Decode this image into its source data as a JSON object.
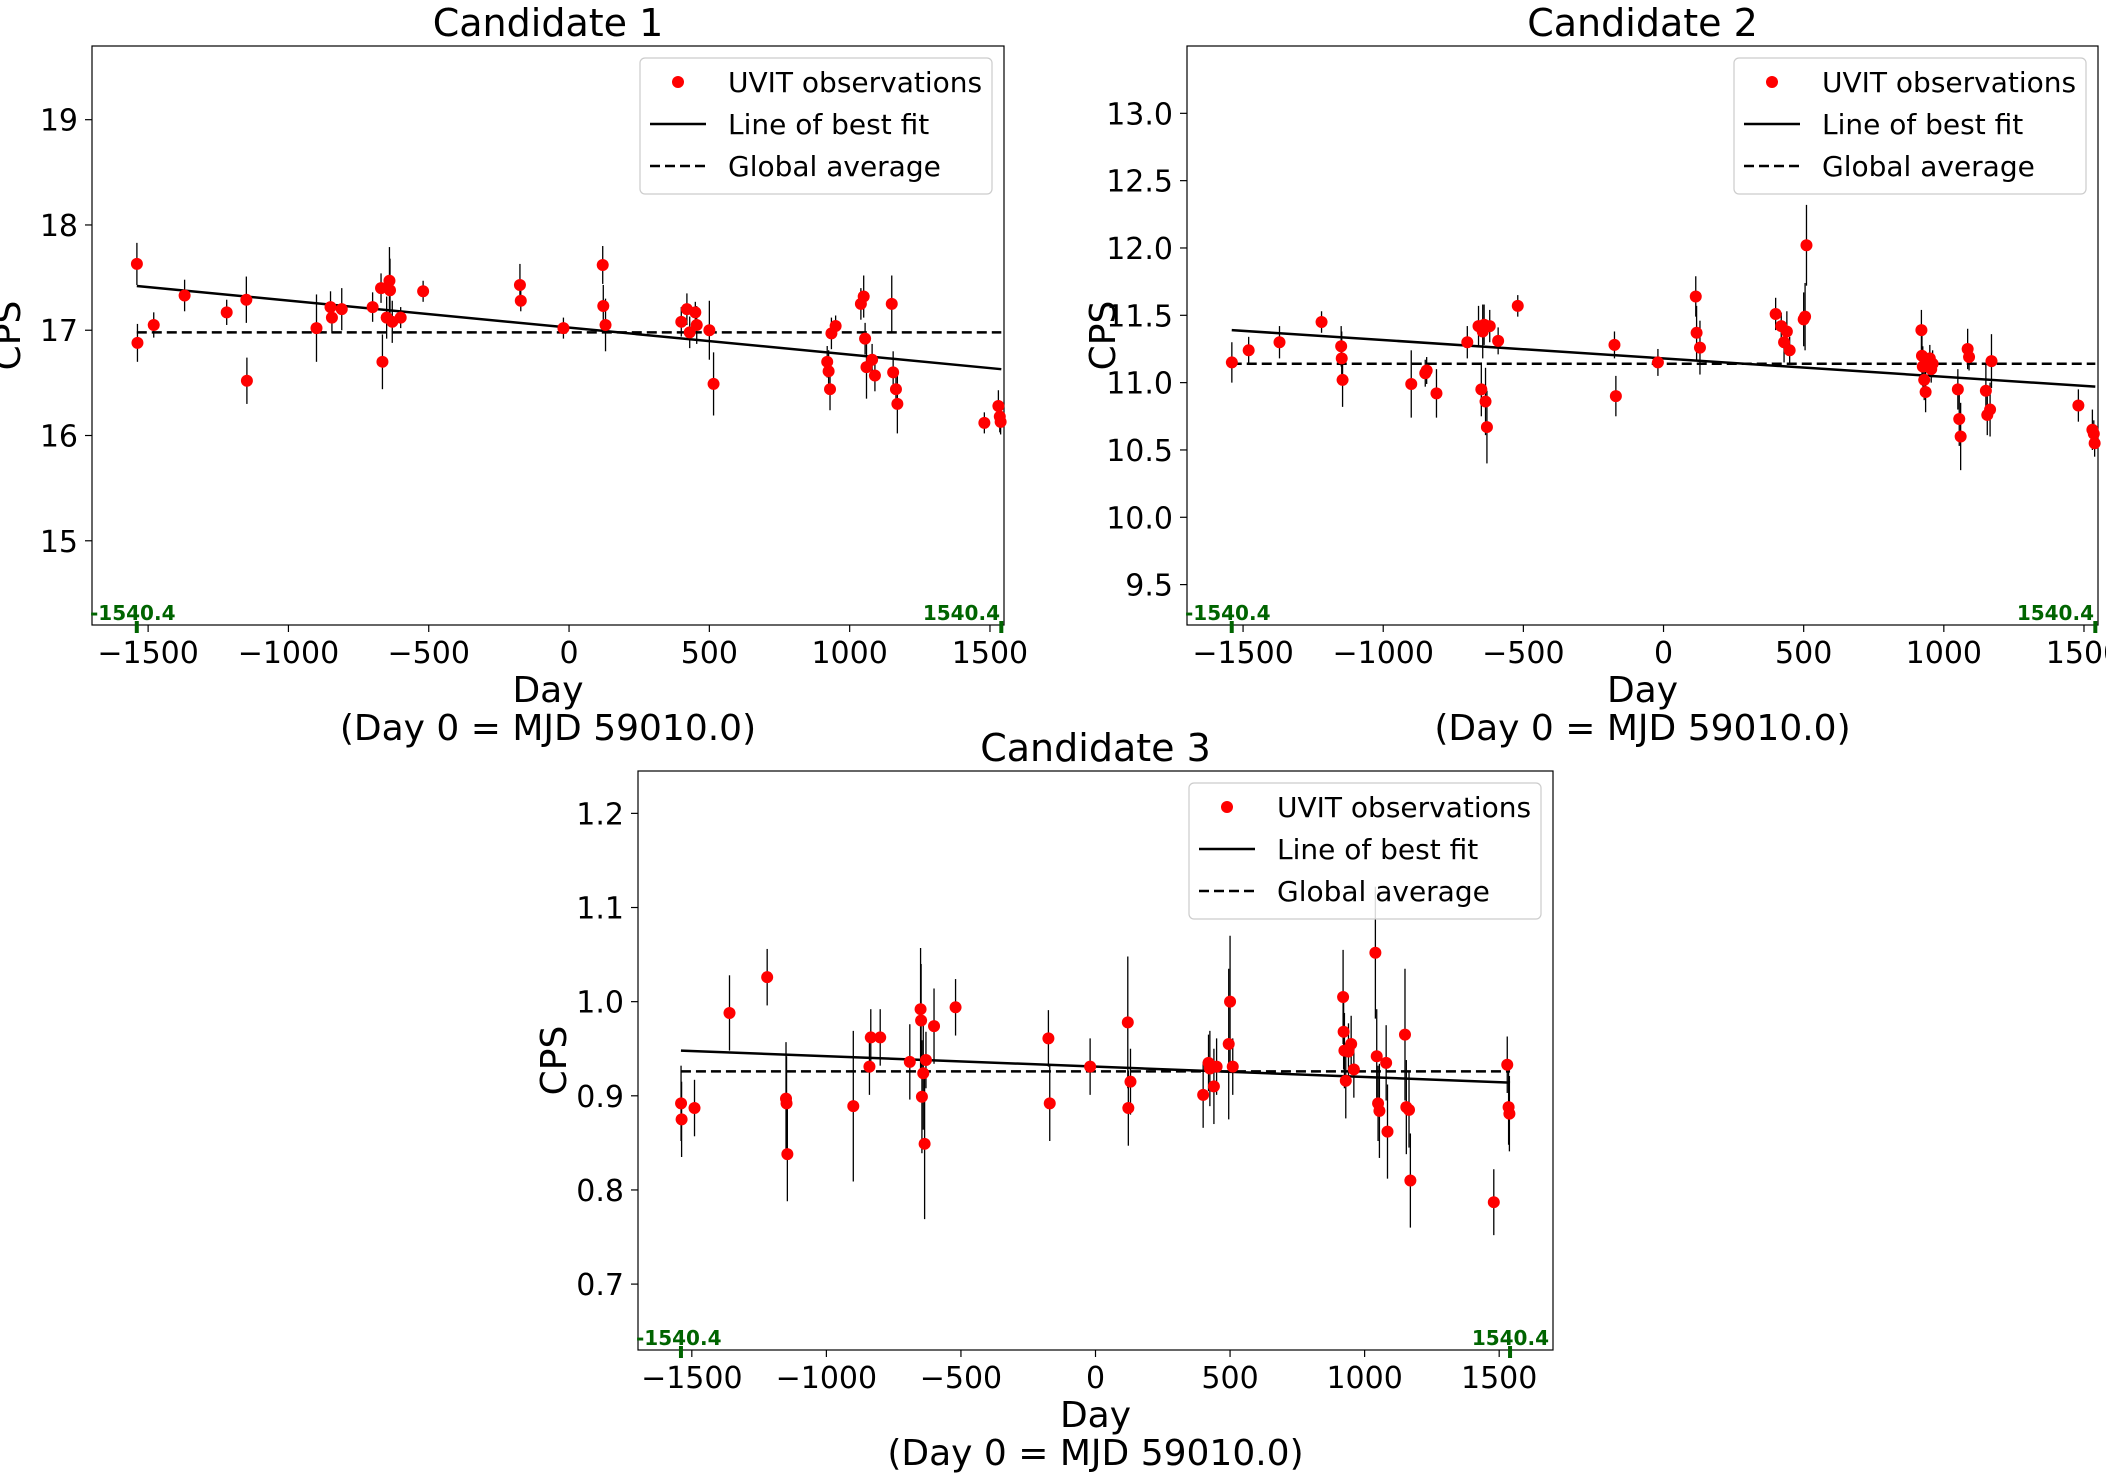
{
  "chart_data": [
    {
      "type": "scatter",
      "title": "Candidate 1",
      "xlabel": "Day",
      "xlabel2": "(Day 0 = MJD 59010.0)",
      "ylabel": "CPS",
      "xlim": [
        -1700,
        1550
      ],
      "ylim": [
        14.2,
        19.7
      ],
      "xticks": [
        -1500,
        -1000,
        -500,
        0,
        500,
        1000,
        1500
      ],
      "xtick_labels": [
        "−1500",
        "−1000",
        "−500",
        "0",
        "500",
        "1000",
        "1500"
      ],
      "yticks": [
        15,
        16,
        17,
        18,
        19
      ],
      "ytick_labels": [
        "15",
        "16",
        "17",
        "18",
        "19"
      ],
      "span_labels": [
        "-1540.4",
        "1540.4"
      ],
      "span_ticks": [
        -1540.4,
        1540.4
      ],
      "grid": false,
      "legend_position": "top-right",
      "legend": [
        "UVIT observations",
        "Line of best fit",
        "Global average"
      ],
      "colors": {
        "points": "#ff0000",
        "fit": "#000000",
        "average": "#000000",
        "span": "#006400"
      },
      "global_average": 16.98,
      "fit_line": {
        "x": [
          -1540.4,
          1540.4
        ],
        "y": [
          17.42,
          16.63
        ]
      },
      "points": [
        [
          -1540,
          17.63,
          0.2
        ],
        [
          -1538,
          16.88,
          0.18
        ],
        [
          -1480,
          17.05,
          0.12
        ],
        [
          -1370,
          17.33,
          0.15
        ],
        [
          -1220,
          17.17,
          0.12
        ],
        [
          -1150,
          17.29,
          0.22
        ],
        [
          -1148,
          16.52,
          0.22
        ],
        [
          -900,
          17.02,
          0.32
        ],
        [
          -850,
          17.22,
          0.15
        ],
        [
          -845,
          17.12,
          0.15
        ],
        [
          -810,
          17.2,
          0.2
        ],
        [
          -700,
          17.22,
          0.14
        ],
        [
          -670,
          17.4,
          0.14
        ],
        [
          -665,
          16.7,
          0.26
        ],
        [
          -650,
          17.12,
          0.2
        ],
        [
          -640,
          17.47,
          0.32
        ],
        [
          -638,
          17.38,
          0.3
        ],
        [
          -630,
          17.08,
          0.2
        ],
        [
          -600,
          17.12,
          0.1
        ],
        [
          -520,
          17.37,
          0.1
        ],
        [
          -175,
          17.43,
          0.2
        ],
        [
          -172,
          17.28,
          0.1
        ],
        [
          -20,
          17.02,
          0.1
        ],
        [
          120,
          17.62,
          0.18
        ],
        [
          122,
          17.23,
          0.2
        ],
        [
          130,
          17.05,
          0.25
        ],
        [
          400,
          17.08,
          0.14
        ],
        [
          420,
          17.2,
          0.15
        ],
        [
          430,
          16.98,
          0.15
        ],
        [
          450,
          17.17,
          0.1
        ],
        [
          455,
          17.05,
          0.18
        ],
        [
          500,
          17.0,
          0.28
        ],
        [
          515,
          16.49,
          0.3
        ],
        [
          920,
          16.7,
          0.15
        ],
        [
          925,
          16.61,
          0.2
        ],
        [
          930,
          16.44,
          0.2
        ],
        [
          935,
          16.97,
          0.15
        ],
        [
          950,
          17.04,
          0.1
        ],
        [
          1040,
          17.25,
          0.15
        ],
        [
          1050,
          17.32,
          0.2
        ],
        [
          1055,
          16.92,
          0.15
        ],
        [
          1060,
          16.65,
          0.3
        ],
        [
          1080,
          16.72,
          0.15
        ],
        [
          1090,
          16.57,
          0.15
        ],
        [
          1150,
          17.25,
          0.27
        ],
        [
          1155,
          16.6,
          0.2
        ],
        [
          1165,
          16.44,
          0.15
        ],
        [
          1170,
          16.3,
          0.28
        ],
        [
          1480,
          16.12,
          0.1
        ],
        [
          1530,
          16.28,
          0.15
        ],
        [
          1535,
          16.18,
          0.15
        ],
        [
          1538,
          16.13,
          0.12
        ]
      ]
    },
    {
      "type": "scatter",
      "title": "Candidate 2",
      "xlabel": "Day",
      "xlabel2": "(Day 0 = MJD 59010.0)",
      "ylabel": "CPS",
      "xlim": [
        -1700,
        1550
      ],
      "ylim": [
        9.2,
        13.5
      ],
      "xticks": [
        -1500,
        -1000,
        -500,
        0,
        500,
        1000,
        1500
      ],
      "xtick_labels": [
        "−1500",
        "−1000",
        "−500",
        "0",
        "500",
        "1000",
        "1500"
      ],
      "yticks": [
        9.5,
        10.0,
        10.5,
        11.0,
        11.5,
        12.0,
        12.5,
        13.0
      ],
      "ytick_labels": [
        "9.5",
        "10.0",
        "10.5",
        "11.0",
        "11.5",
        "12.0",
        "12.5",
        "13.0"
      ],
      "span_labels": [
        "-1540.4",
        "1540.4"
      ],
      "span_ticks": [
        -1540.4,
        1540.4
      ],
      "grid": false,
      "legend_position": "top-right",
      "legend": [
        "UVIT observations",
        "Line of best fit",
        "Global average"
      ],
      "colors": {
        "points": "#ff0000",
        "fit": "#000000",
        "average": "#000000",
        "span": "#006400"
      },
      "global_average": 11.14,
      "fit_line": {
        "x": [
          -1540.4,
          1540.4
        ],
        "y": [
          11.39,
          10.97
        ]
      },
      "points": [
        [
          -1540,
          11.15,
          0.15
        ],
        [
          -1480,
          11.24,
          0.1
        ],
        [
          -1370,
          11.3,
          0.12
        ],
        [
          -1220,
          11.45,
          0.08
        ],
        [
          -1150,
          11.27,
          0.15
        ],
        [
          -1148,
          11.18,
          0.2
        ],
        [
          -1145,
          11.02,
          0.2
        ],
        [
          -900,
          10.99,
          0.25
        ],
        [
          -850,
          11.07,
          0.1
        ],
        [
          -845,
          11.09,
          0.1
        ],
        [
          -810,
          10.92,
          0.18
        ],
        [
          -700,
          11.3,
          0.12
        ],
        [
          -660,
          11.42,
          0.15
        ],
        [
          -650,
          10.95,
          0.2
        ],
        [
          -645,
          11.38,
          0.2
        ],
        [
          -640,
          11.43,
          0.15
        ],
        [
          -635,
          10.86,
          0.25
        ],
        [
          -630,
          10.67,
          0.27
        ],
        [
          -620,
          11.42,
          0.12
        ],
        [
          -590,
          11.31,
          0.1
        ],
        [
          -520,
          11.57,
          0.08
        ],
        [
          -175,
          11.28,
          0.1
        ],
        [
          -170,
          10.9,
          0.15
        ],
        [
          -20,
          11.15,
          0.1
        ],
        [
          115,
          11.64,
          0.15
        ],
        [
          118,
          11.37,
          0.2
        ],
        [
          130,
          11.26,
          0.2
        ],
        [
          400,
          11.51,
          0.12
        ],
        [
          420,
          11.42,
          0.1
        ],
        [
          430,
          11.3,
          0.15
        ],
        [
          440,
          11.38,
          0.15
        ],
        [
          450,
          11.24,
          0.1
        ],
        [
          500,
          11.47,
          0.2
        ],
        [
          505,
          11.49,
          0.25
        ],
        [
          510,
          12.02,
          0.3
        ],
        [
          920,
          11.39,
          0.15
        ],
        [
          922,
          11.2,
          0.15
        ],
        [
          925,
          11.12,
          0.15
        ],
        [
          930,
          11.02,
          0.15
        ],
        [
          935,
          10.93,
          0.15
        ],
        [
          950,
          11.18,
          0.1
        ],
        [
          955,
          11.1,
          0.1
        ],
        [
          960,
          11.14,
          0.1
        ],
        [
          1050,
          10.95,
          0.15
        ],
        [
          1055,
          10.73,
          0.2
        ],
        [
          1060,
          10.6,
          0.25
        ],
        [
          1085,
          11.25,
          0.15
        ],
        [
          1090,
          11.19,
          0.1
        ],
        [
          1150,
          10.94,
          0.2
        ],
        [
          1155,
          10.76,
          0.15
        ],
        [
          1165,
          10.8,
          0.2
        ],
        [
          1170,
          11.16,
          0.2
        ],
        [
          1480,
          10.83,
          0.12
        ],
        [
          1530,
          10.65,
          0.15
        ],
        [
          1535,
          10.62,
          0.1
        ],
        [
          1538,
          10.55,
          0.1
        ]
      ]
    },
    {
      "type": "scatter",
      "title": "Candidate 3",
      "xlabel": "Day",
      "xlabel2": "(Day 0 = MJD 59010.0)",
      "ylabel": "CPS",
      "xlim": [
        -1700,
        1700
      ],
      "ylim": [
        0.63,
        1.245
      ],
      "xticks": [
        -1500,
        -1000,
        -500,
        0,
        500,
        1000,
        1500
      ],
      "xtick_labels": [
        "−1500",
        "−1000",
        "−500",
        "0",
        "500",
        "1000",
        "1500"
      ],
      "yticks": [
        0.7,
        0.8,
        0.9,
        1.0,
        1.1,
        1.2
      ],
      "ytick_labels": [
        "0.7",
        "0.8",
        "0.9",
        "1.0",
        "1.1",
        "1.2"
      ],
      "span_labels": [
        "-1540.4",
        "1540.4"
      ],
      "span_ticks": [
        -1540.4,
        1540.4
      ],
      "grid": false,
      "legend_position": "top-right",
      "legend": [
        "UVIT observations",
        "Line of best fit",
        "Global average"
      ],
      "colors": {
        "points": "#ff0000",
        "fit": "#000000",
        "average": "#000000",
        "span": "#006400"
      },
      "global_average": 0.926,
      "fit_line": {
        "x": [
          -1540.4,
          1540.4
        ],
        "y": [
          0.948,
          0.914
        ]
      },
      "points": [
        [
          -1540,
          0.892,
          0.04
        ],
        [
          -1538,
          0.875,
          0.04
        ],
        [
          -1490,
          0.887,
          0.03
        ],
        [
          -1360,
          0.988,
          0.04
        ],
        [
          -1220,
          1.026,
          0.03
        ],
        [
          -1150,
          0.897,
          0.06
        ],
        [
          -1148,
          0.892,
          0.05
        ],
        [
          -1145,
          0.838,
          0.05
        ],
        [
          -900,
          0.889,
          0.08
        ],
        [
          -840,
          0.931,
          0.03
        ],
        [
          -835,
          0.962,
          0.03
        ],
        [
          -800,
          0.962,
          0.03
        ],
        [
          -690,
          0.936,
          0.04
        ],
        [
          -650,
          0.992,
          0.065
        ],
        [
          -648,
          0.98,
          0.06
        ],
        [
          -645,
          0.899,
          0.06
        ],
        [
          -640,
          0.924,
          0.06
        ],
        [
          -635,
          0.849,
          0.08
        ],
        [
          -630,
          0.938,
          0.03
        ],
        [
          -600,
          0.974,
          0.04
        ],
        [
          -520,
          0.994,
          0.03
        ],
        [
          -175,
          0.961,
          0.03
        ],
        [
          -170,
          0.892,
          0.04
        ],
        [
          -20,
          0.931,
          0.03
        ],
        [
          120,
          0.978,
          0.07
        ],
        [
          122,
          0.887,
          0.04
        ],
        [
          130,
          0.915,
          0.035
        ],
        [
          400,
          0.901,
          0.035
        ],
        [
          420,
          0.935,
          0.03
        ],
        [
          425,
          0.929,
          0.04
        ],
        [
          440,
          0.91,
          0.04
        ],
        [
          450,
          0.931,
          0.03
        ],
        [
          495,
          0.955,
          0.08
        ],
        [
          500,
          1.0,
          0.07
        ],
        [
          510,
          0.931,
          0.03
        ],
        [
          920,
          1.005,
          0.05
        ],
        [
          922,
          0.968,
          0.04
        ],
        [
          925,
          0.948,
          0.04
        ],
        [
          930,
          0.916,
          0.04
        ],
        [
          940,
          0.947,
          0.03
        ],
        [
          950,
          0.955,
          0.03
        ],
        [
          960,
          0.928,
          0.03
        ],
        [
          1040,
          1.052,
          0.07
        ],
        [
          1045,
          0.942,
          0.05
        ],
        [
          1050,
          0.892,
          0.04
        ],
        [
          1055,
          0.884,
          0.05
        ],
        [
          1080,
          0.935,
          0.04
        ],
        [
          1085,
          0.862,
          0.05
        ],
        [
          1150,
          0.965,
          0.07
        ],
        [
          1155,
          0.888,
          0.05
        ],
        [
          1165,
          0.885,
          0.04
        ],
        [
          1170,
          0.81,
          0.05
        ],
        [
          1480,
          0.787,
          0.035
        ],
        [
          1530,
          0.933,
          0.03
        ],
        [
          1535,
          0.888,
          0.04
        ],
        [
          1538,
          0.881,
          0.04
        ]
      ]
    }
  ]
}
